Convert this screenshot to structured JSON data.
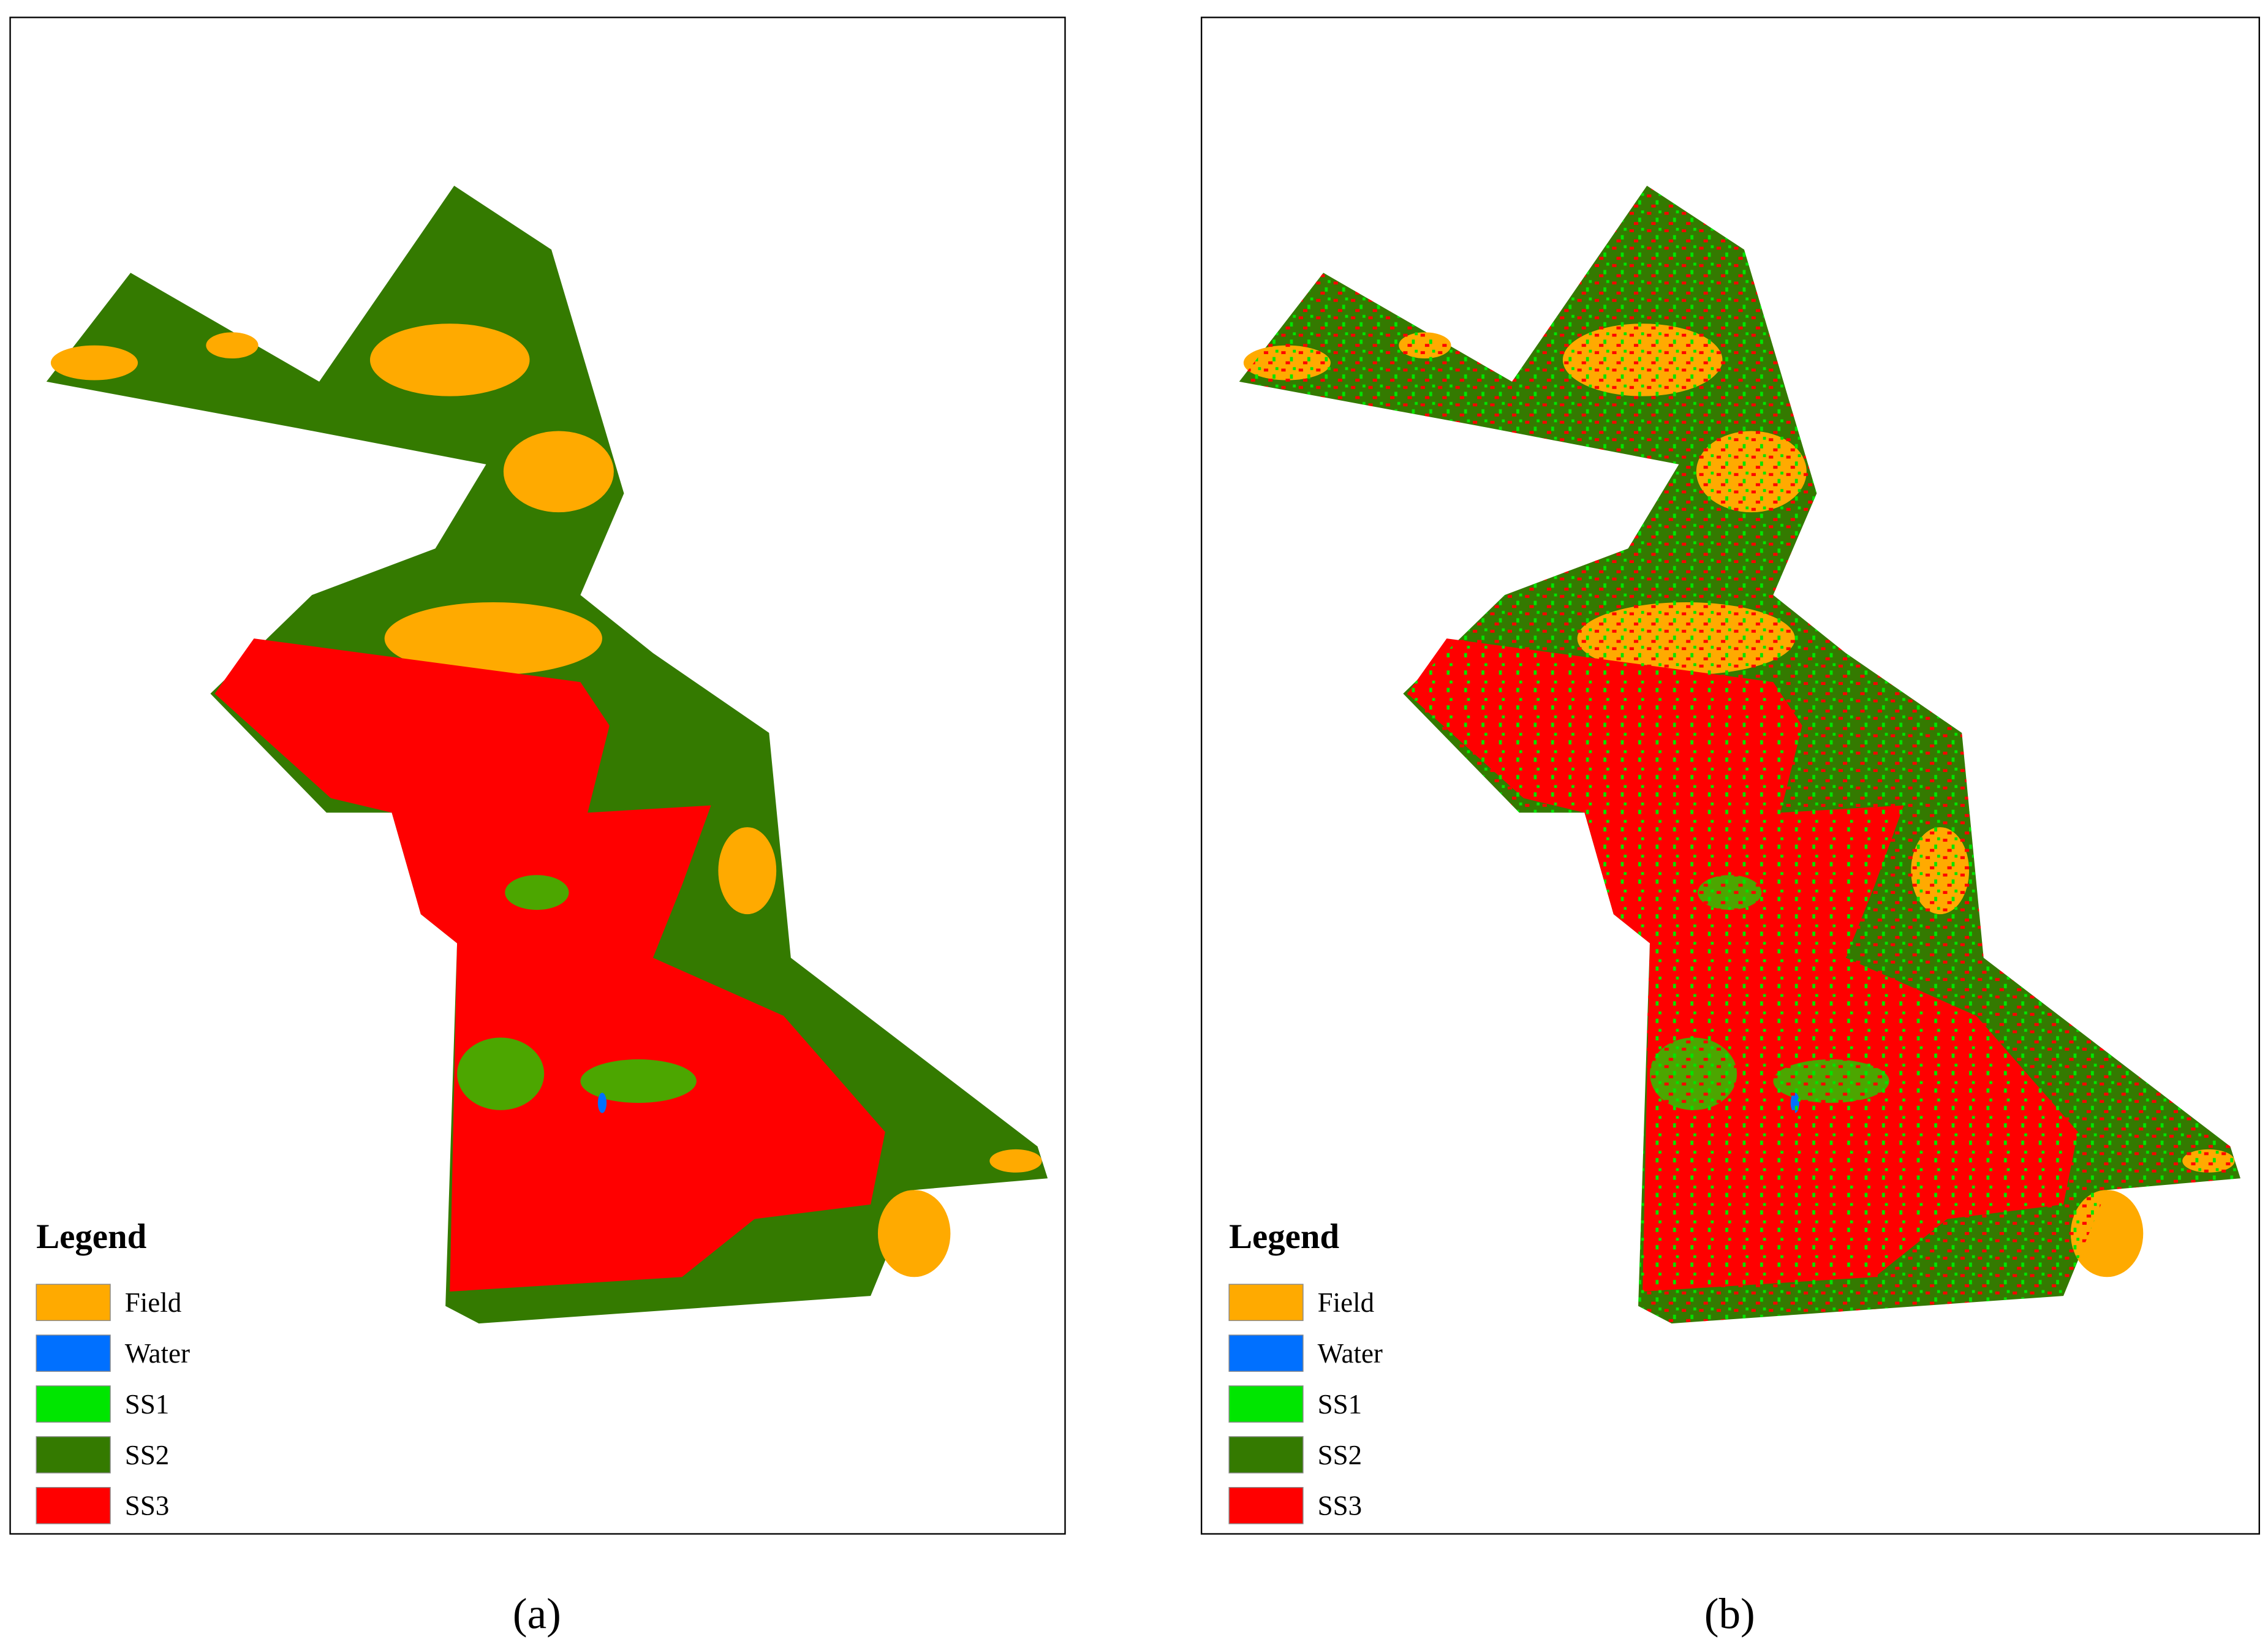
{
  "panels": [
    {
      "caption": "(a)",
      "legend": {
        "title": "Legend",
        "items": [
          {
            "label": "Field",
            "color": "#ffaa00"
          },
          {
            "label": "Water",
            "color": "#0070ff"
          },
          {
            "label": "SS1",
            "color": "#00e600"
          },
          {
            "label": "SS2",
            "color": "#347a00"
          },
          {
            "label": "SS3",
            "color": "#ff0000"
          }
        ]
      }
    },
    {
      "caption": "(b)",
      "legend": {
        "title": "Legend",
        "items": [
          {
            "label": "Field",
            "color": "#ffaa00"
          },
          {
            "label": "Water",
            "color": "#0070ff"
          },
          {
            "label": "SS1",
            "color": "#00e600"
          },
          {
            "label": "SS2",
            "color": "#347a00"
          },
          {
            "label": "SS3",
            "color": "#ff0000"
          }
        ]
      }
    }
  ]
}
